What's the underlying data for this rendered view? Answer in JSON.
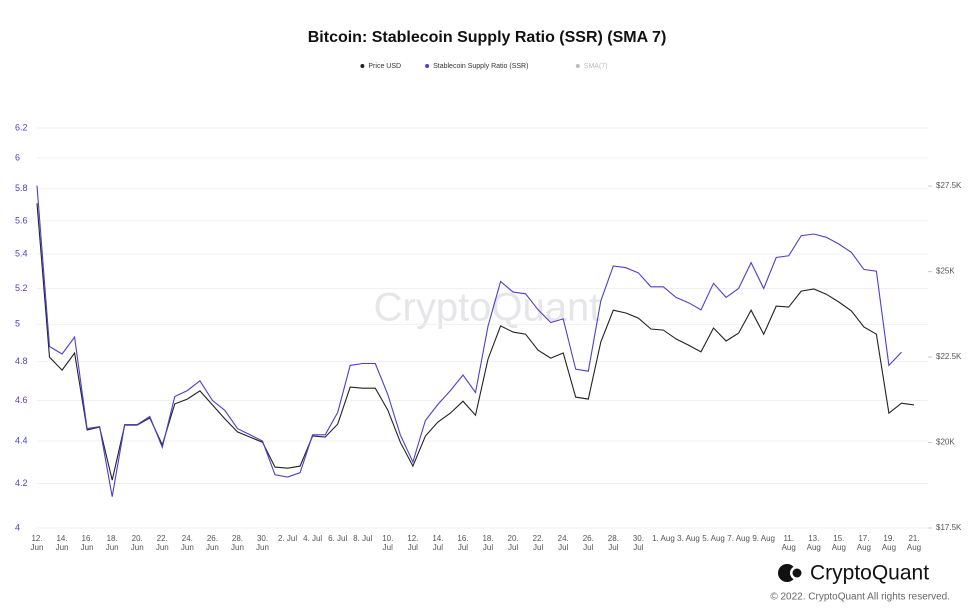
{
  "chart_data": {
    "type": "line",
    "title": "Bitcoin: Stablecoin Supply Ratio (SSR) (SMA 7)",
    "watermark": "CryptoQuant",
    "brand": "CryptoQuant",
    "copyright": "© 2022. CryptoQuant All rights reserved.",
    "categories": [
      "12. Jun",
      null,
      "14. Jun",
      null,
      "16. Jun",
      null,
      "18. Jun",
      null,
      "20. Jun",
      null,
      "22. Jun",
      null,
      "24. Jun",
      null,
      "26. Jun",
      null,
      "28. Jun",
      null,
      "30. Jun",
      null,
      "2. Jul",
      null,
      "4. Jul",
      null,
      "6. Jul",
      null,
      "8. Jul",
      null,
      "10. Jul",
      null,
      "12. Jul",
      null,
      "14. Jul",
      null,
      "16. Jul",
      null,
      "18. Jul",
      null,
      "20. Jul",
      null,
      "22. Jul",
      null,
      "24. Jul",
      null,
      "26. Jul",
      null,
      "28. Jul",
      null,
      "30. Jul",
      null,
      "1. Aug",
      null,
      "3. Aug",
      null,
      "5. Aug",
      null,
      "7. Aug",
      null,
      "9. Aug",
      null,
      "11. Aug",
      null,
      "13. Aug",
      null,
      "15. Aug",
      null,
      "17. Aug",
      null,
      "19. Aug",
      null,
      "21. Aug"
    ],
    "series": [
      {
        "name": "Price USD",
        "color": "#222222",
        "axis": "y2",
        "values": [
          27000,
          22500,
          22120,
          22620,
          20370,
          20450,
          18900,
          20510,
          20510,
          20720,
          19930,
          21130,
          21270,
          21510,
          21100,
          20690,
          20310,
          20160,
          20010,
          19280,
          19250,
          19310,
          20190,
          20160,
          20540,
          21620,
          21590,
          21590,
          20950,
          20010,
          19310,
          20190,
          20600,
          20860,
          21210,
          20800,
          22440,
          23410,
          23230,
          23170,
          22700,
          22470,
          22620,
          21330,
          21270,
          22940,
          23870,
          23790,
          23640,
          23320,
          23290,
          23030,
          22850,
          22650,
          23350,
          22970,
          23200,
          23870,
          23170,
          23990,
          23960,
          24430,
          24490,
          24340,
          24110,
          23850,
          23380,
          23170,
          20860,
          21150,
          21100
        ]
      },
      {
        "name": "Stablecoin Supply Ratio (SSR)",
        "color": "#4b3fd6",
        "axis": "y",
        "values": [
          5.82,
          4.88,
          4.84,
          4.93,
          4.46,
          4.47,
          4.14,
          4.48,
          4.48,
          4.52,
          4.37,
          4.62,
          4.65,
          4.7,
          4.6,
          4.55,
          4.46,
          4.43,
          4.4,
          4.24,
          4.23,
          4.25,
          4.43,
          4.43,
          4.54,
          4.78,
          4.79,
          4.79,
          4.63,
          4.43,
          4.3,
          4.5,
          4.58,
          4.65,
          4.73,
          4.64,
          4.99,
          5.24,
          5.18,
          5.17,
          5.08,
          5.01,
          5.03,
          4.76,
          4.75,
          5.13,
          5.33,
          5.32,
          5.29,
          5.21,
          5.21,
          5.15,
          5.12,
          5.08,
          5.23,
          5.15,
          5.2,
          5.35,
          5.2,
          5.38,
          5.39,
          5.51,
          5.52,
          5.5,
          5.46,
          5.41,
          5.31,
          5.3,
          4.78,
          4.85,
          null
        ]
      },
      {
        "name": "SMA(7)",
        "color": "#bbbbbb",
        "axis": "y",
        "hidden": true,
        "values": [
          null,
          null,
          null,
          null,
          null,
          null,
          null,
          null,
          null,
          null,
          null,
          null,
          null,
          null,
          null,
          null,
          null,
          null,
          null,
          null,
          null,
          null,
          null,
          null,
          null,
          null,
          null,
          null,
          null,
          null,
          null,
          null,
          null,
          null,
          null,
          null,
          null,
          null,
          null,
          null,
          null,
          null,
          null,
          null,
          null,
          null,
          null,
          null,
          null,
          null,
          null,
          null,
          null,
          null,
          null,
          null,
          null,
          null,
          null,
          null,
          null,
          null,
          null,
          null,
          null,
          null,
          null,
          null,
          null,
          null,
          null
        ]
      }
    ],
    "ylim": [
      4,
      6.2
    ],
    "ylog": true,
    "yticks": [
      4,
      4.2,
      4.4,
      4.6,
      4.8,
      5,
      5.2,
      5.4,
      5.6,
      5.8,
      6,
      6.2
    ],
    "y2lim": [
      17500,
      29200
    ],
    "y2ticks": [
      {
        "value": 17500,
        "label": "$17.5K"
      },
      {
        "value": 20000,
        "label": "$20K"
      },
      {
        "value": 22500,
        "label": "$22.5K"
      },
      {
        "value": 25000,
        "label": "$25K"
      },
      {
        "value": 27500,
        "label": "$27.5K"
      }
    ],
    "grid": true,
    "legend": "top"
  }
}
